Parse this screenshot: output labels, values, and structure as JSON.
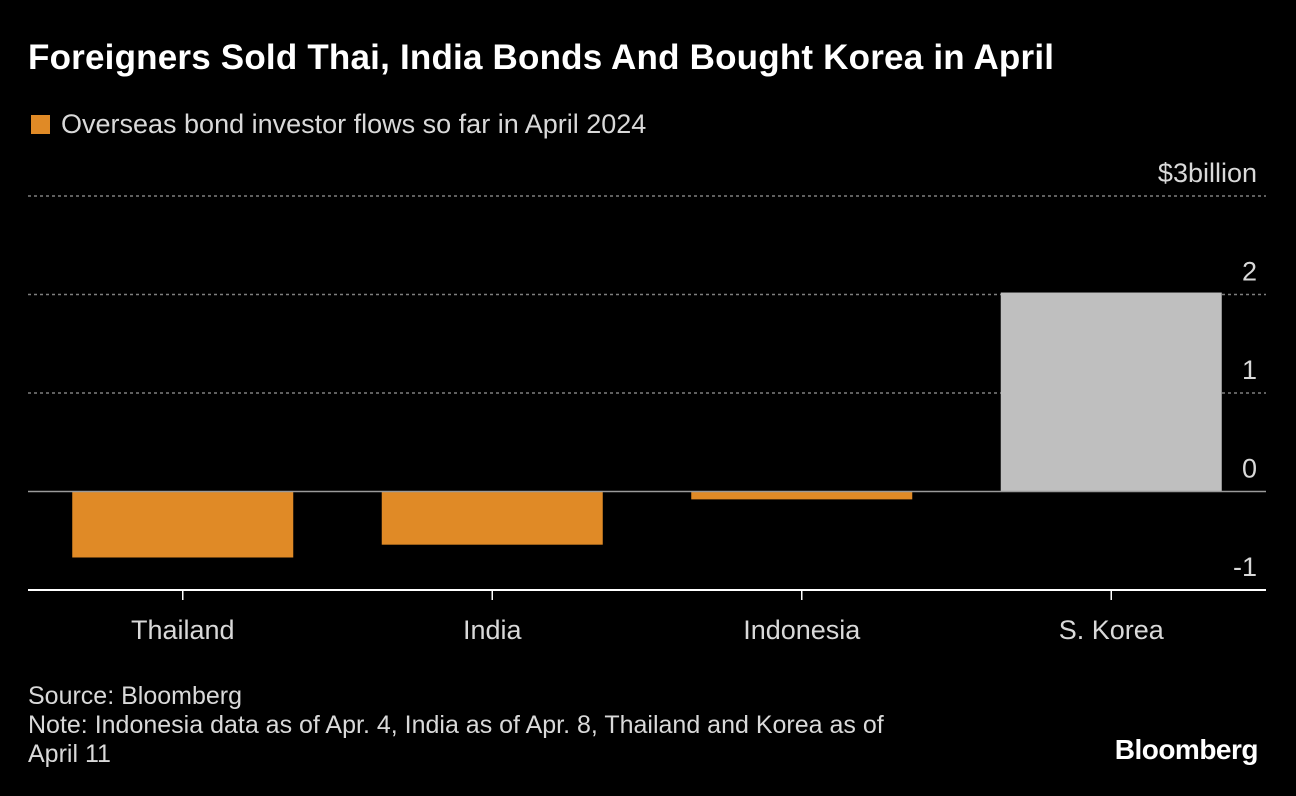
{
  "title": "Foreigners Sold Thai, India Bonds And Bought Korea in April",
  "legend": {
    "label": "Overseas bond investor flows so far in April 2024"
  },
  "chart_data": {
    "type": "bar",
    "categories": [
      "Thailand",
      "India",
      "Indonesia",
      "S. Korea"
    ],
    "values": [
      -0.67,
      -0.54,
      -0.08,
      2.02
    ],
    "bar_colors": [
      "#e08a26",
      "#e08a26",
      "#e08a26",
      "#bfbfbf"
    ],
    "ylim": [
      -1,
      3
    ],
    "yticks": [
      {
        "value": 3,
        "label": "$3billion"
      },
      {
        "value": 2,
        "label": "2"
      },
      {
        "value": 1,
        "label": "1"
      },
      {
        "value": 0,
        "label": "0"
      },
      {
        "value": -1,
        "label": "-1"
      }
    ],
    "ylabel": "",
    "xlabel": "",
    "grid": true
  },
  "footer": {
    "source": "Source: Bloomberg",
    "note_line1": "Note: Indonesia data as of Apr. 4, India as of Apr. 8, Thailand and Korea as of",
    "note_line2": "April 11"
  },
  "brand": "Bloomberg",
  "colors": {
    "background": "#000000",
    "negative_bar": "#e08a26",
    "positive_bar": "#bfbfbf",
    "grid": "#7f7f7f",
    "axis": "#ffffff"
  }
}
